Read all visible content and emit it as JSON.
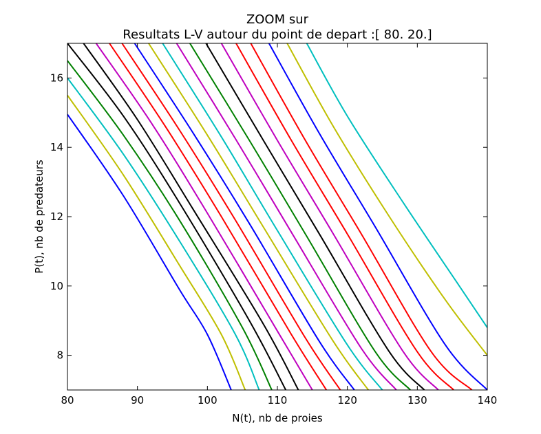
{
  "chart_data": {
    "type": "line",
    "title_line1": "ZOOM sur",
    "title_line2": "Resultats L-V autour du point de depart :[ 80.  20.]",
    "xlabel": "N(t), nb de proies",
    "ylabel": "P(t), nb de predateurs",
    "xlim": [
      80,
      140
    ],
    "ylim": [
      7,
      17
    ],
    "xticks": [
      80,
      90,
      100,
      110,
      120,
      130,
      140
    ],
    "yticks": [
      8,
      10,
      12,
      14,
      16
    ],
    "grid": false,
    "series": [
      {
        "color": "#0000ff",
        "points": [
          [
            80,
            14.95
          ],
          [
            88,
            12.6
          ],
          [
            96,
            9.9
          ],
          [
            100,
            8.6
          ],
          [
            103.4,
            7.0
          ]
        ]
      },
      {
        "color": "#bfbf00",
        "points": [
          [
            80,
            15.5
          ],
          [
            88,
            13.2
          ],
          [
            96,
            10.6
          ],
          [
            102,
            8.6
          ],
          [
            105.4,
            7.0
          ]
        ]
      },
      {
        "color": "#00bfbf",
        "points": [
          [
            80,
            16.0
          ],
          [
            88,
            13.8
          ],
          [
            96,
            11.3
          ],
          [
            104,
            8.6
          ],
          [
            107.4,
            7.0
          ]
        ]
      },
      {
        "color": "#008000",
        "points": [
          [
            80,
            16.5
          ],
          [
            88,
            14.35
          ],
          [
            96,
            11.9
          ],
          [
            105,
            8.8
          ],
          [
            109.2,
            7.0
          ]
        ]
      },
      {
        "color": "#000000",
        "points": [
          [
            80,
            17.0
          ],
          [
            88,
            14.9
          ],
          [
            96,
            12.4
          ],
          [
            106,
            9.0
          ],
          [
            111.2,
            7.0
          ]
        ]
      },
      {
        "color": "#000000",
        "points": [
          [
            82.3,
            17.0
          ],
          [
            90,
            14.8
          ],
          [
            98,
            12.2
          ],
          [
            108,
            8.9
          ],
          [
            113.0,
            7.0
          ]
        ]
      },
      {
        "color": "#bf00bf",
        "points": [
          [
            84.1,
            17.0
          ],
          [
            92,
            14.7
          ],
          [
            100,
            12.1
          ],
          [
            110,
            8.7
          ],
          [
            115.0,
            7.0
          ]
        ]
      },
      {
        "color": "#ff0000",
        "points": [
          [
            86.0,
            17.0
          ],
          [
            94,
            14.6
          ],
          [
            102,
            12.0
          ],
          [
            112,
            8.6
          ],
          [
            117.0,
            7.0
          ]
        ]
      },
      {
        "color": "#ff0000",
        "points": [
          [
            87.8,
            17.0
          ],
          [
            96,
            14.5
          ],
          [
            104,
            11.9
          ],
          [
            114,
            8.5
          ],
          [
            119.0,
            7.0
          ]
        ]
      },
      {
        "color": "#0000ff",
        "points": [
          [
            89.6,
            17.0
          ],
          [
            98,
            14.4
          ],
          [
            106,
            11.8
          ],
          [
            116,
            8.4
          ],
          [
            121.0,
            7.0
          ]
        ]
      },
      {
        "color": "#bfbf00",
        "points": [
          [
            91.6,
            17.0
          ],
          [
            100,
            14.35
          ],
          [
            108,
            11.7
          ],
          [
            118,
            8.4
          ],
          [
            123.0,
            7.0
          ]
        ]
      },
      {
        "color": "#00bfbf",
        "points": [
          [
            93.6,
            17.0
          ],
          [
            102,
            14.3
          ],
          [
            110,
            11.6
          ],
          [
            120,
            8.3
          ],
          [
            125.0,
            7.0
          ]
        ]
      },
      {
        "color": "#bf00bf",
        "points": [
          [
            95.6,
            17.0
          ],
          [
            104,
            14.25
          ],
          [
            112,
            11.55
          ],
          [
            122,
            8.2
          ],
          [
            127.0,
            7.0
          ]
        ]
      },
      {
        "color": "#008000",
        "points": [
          [
            97.5,
            17.0
          ],
          [
            106,
            14.2
          ],
          [
            114,
            11.5
          ],
          [
            124,
            8.1
          ],
          [
            129.0,
            7.0
          ]
        ]
      },
      {
        "color": "#000000",
        "points": [
          [
            99.8,
            17.0
          ],
          [
            108,
            14.2
          ],
          [
            116,
            11.5
          ],
          [
            126,
            8.1
          ],
          [
            131.0,
            7.0
          ]
        ]
      },
      {
        "color": "#bf00bf",
        "points": [
          [
            102.0,
            17.0
          ],
          [
            110,
            14.2
          ],
          [
            118,
            11.5
          ],
          [
            128,
            8.1
          ],
          [
            133.0,
            7.0
          ]
        ]
      },
      {
        "color": "#ff0000",
        "points": [
          [
            104.1,
            17.0
          ],
          [
            112,
            14.2
          ],
          [
            120,
            11.5
          ],
          [
            130,
            8.1
          ],
          [
            135.2,
            7.0
          ]
        ]
      },
      {
        "color": "#ff0000",
        "points": [
          [
            106.2,
            17.0
          ],
          [
            114,
            14.2
          ],
          [
            122,
            11.5
          ],
          [
            132,
            8.1
          ],
          [
            137.8,
            7.0
          ]
        ]
      },
      {
        "color": "#0000ff",
        "points": [
          [
            108.8,
            17.0
          ],
          [
            116,
            14.4
          ],
          [
            124,
            11.7
          ],
          [
            134,
            8.3
          ],
          [
            140,
            7.0
          ]
        ]
      },
      {
        "color": "#bfbf00",
        "points": [
          [
            111.4,
            17.0
          ],
          [
            118,
            14.6
          ],
          [
            126,
            12.0
          ],
          [
            134,
            9.6
          ],
          [
            140,
            8.0
          ]
        ]
      },
      {
        "color": "#00bfbf",
        "points": [
          [
            114.2,
            17.0
          ],
          [
            120,
            14.9
          ],
          [
            128,
            12.4
          ],
          [
            136,
            10.0
          ],
          [
            140,
            8.8
          ]
        ]
      }
    ]
  }
}
